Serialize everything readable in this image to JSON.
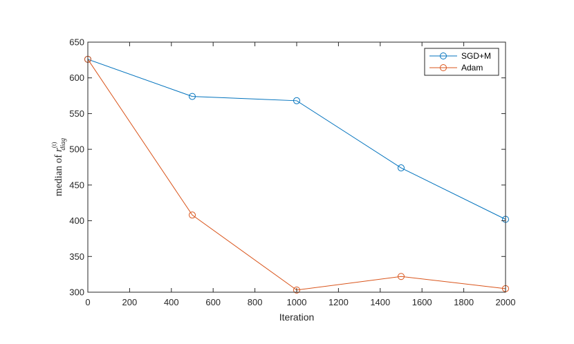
{
  "chart_data": {
    "type": "line",
    "title": "",
    "xlabel": "Iteration",
    "ylabel": {
      "prefix": "median of ",
      "symbol": "r",
      "superscript": "(t)",
      "subscript": "diag"
    },
    "xlim": [
      0,
      2000
    ],
    "ylim": [
      300,
      650
    ],
    "xticks": [
      0,
      200,
      400,
      600,
      800,
      1000,
      1200,
      1400,
      1600,
      1800,
      2000
    ],
    "yticks": [
      300,
      350,
      400,
      450,
      500,
      550,
      600,
      650
    ],
    "grid": false,
    "legend_position": "top-right",
    "x": [
      0,
      500,
      1000,
      1500,
      2000
    ],
    "series": [
      {
        "name": "SGD+M",
        "color": "#0072BD",
        "marker": "circle",
        "values": [
          626,
          574,
          568,
          474,
          402
        ]
      },
      {
        "name": "Adam",
        "color": "#D95319",
        "marker": "circle",
        "values": [
          626,
          408,
          303,
          322,
          305
        ]
      }
    ]
  }
}
